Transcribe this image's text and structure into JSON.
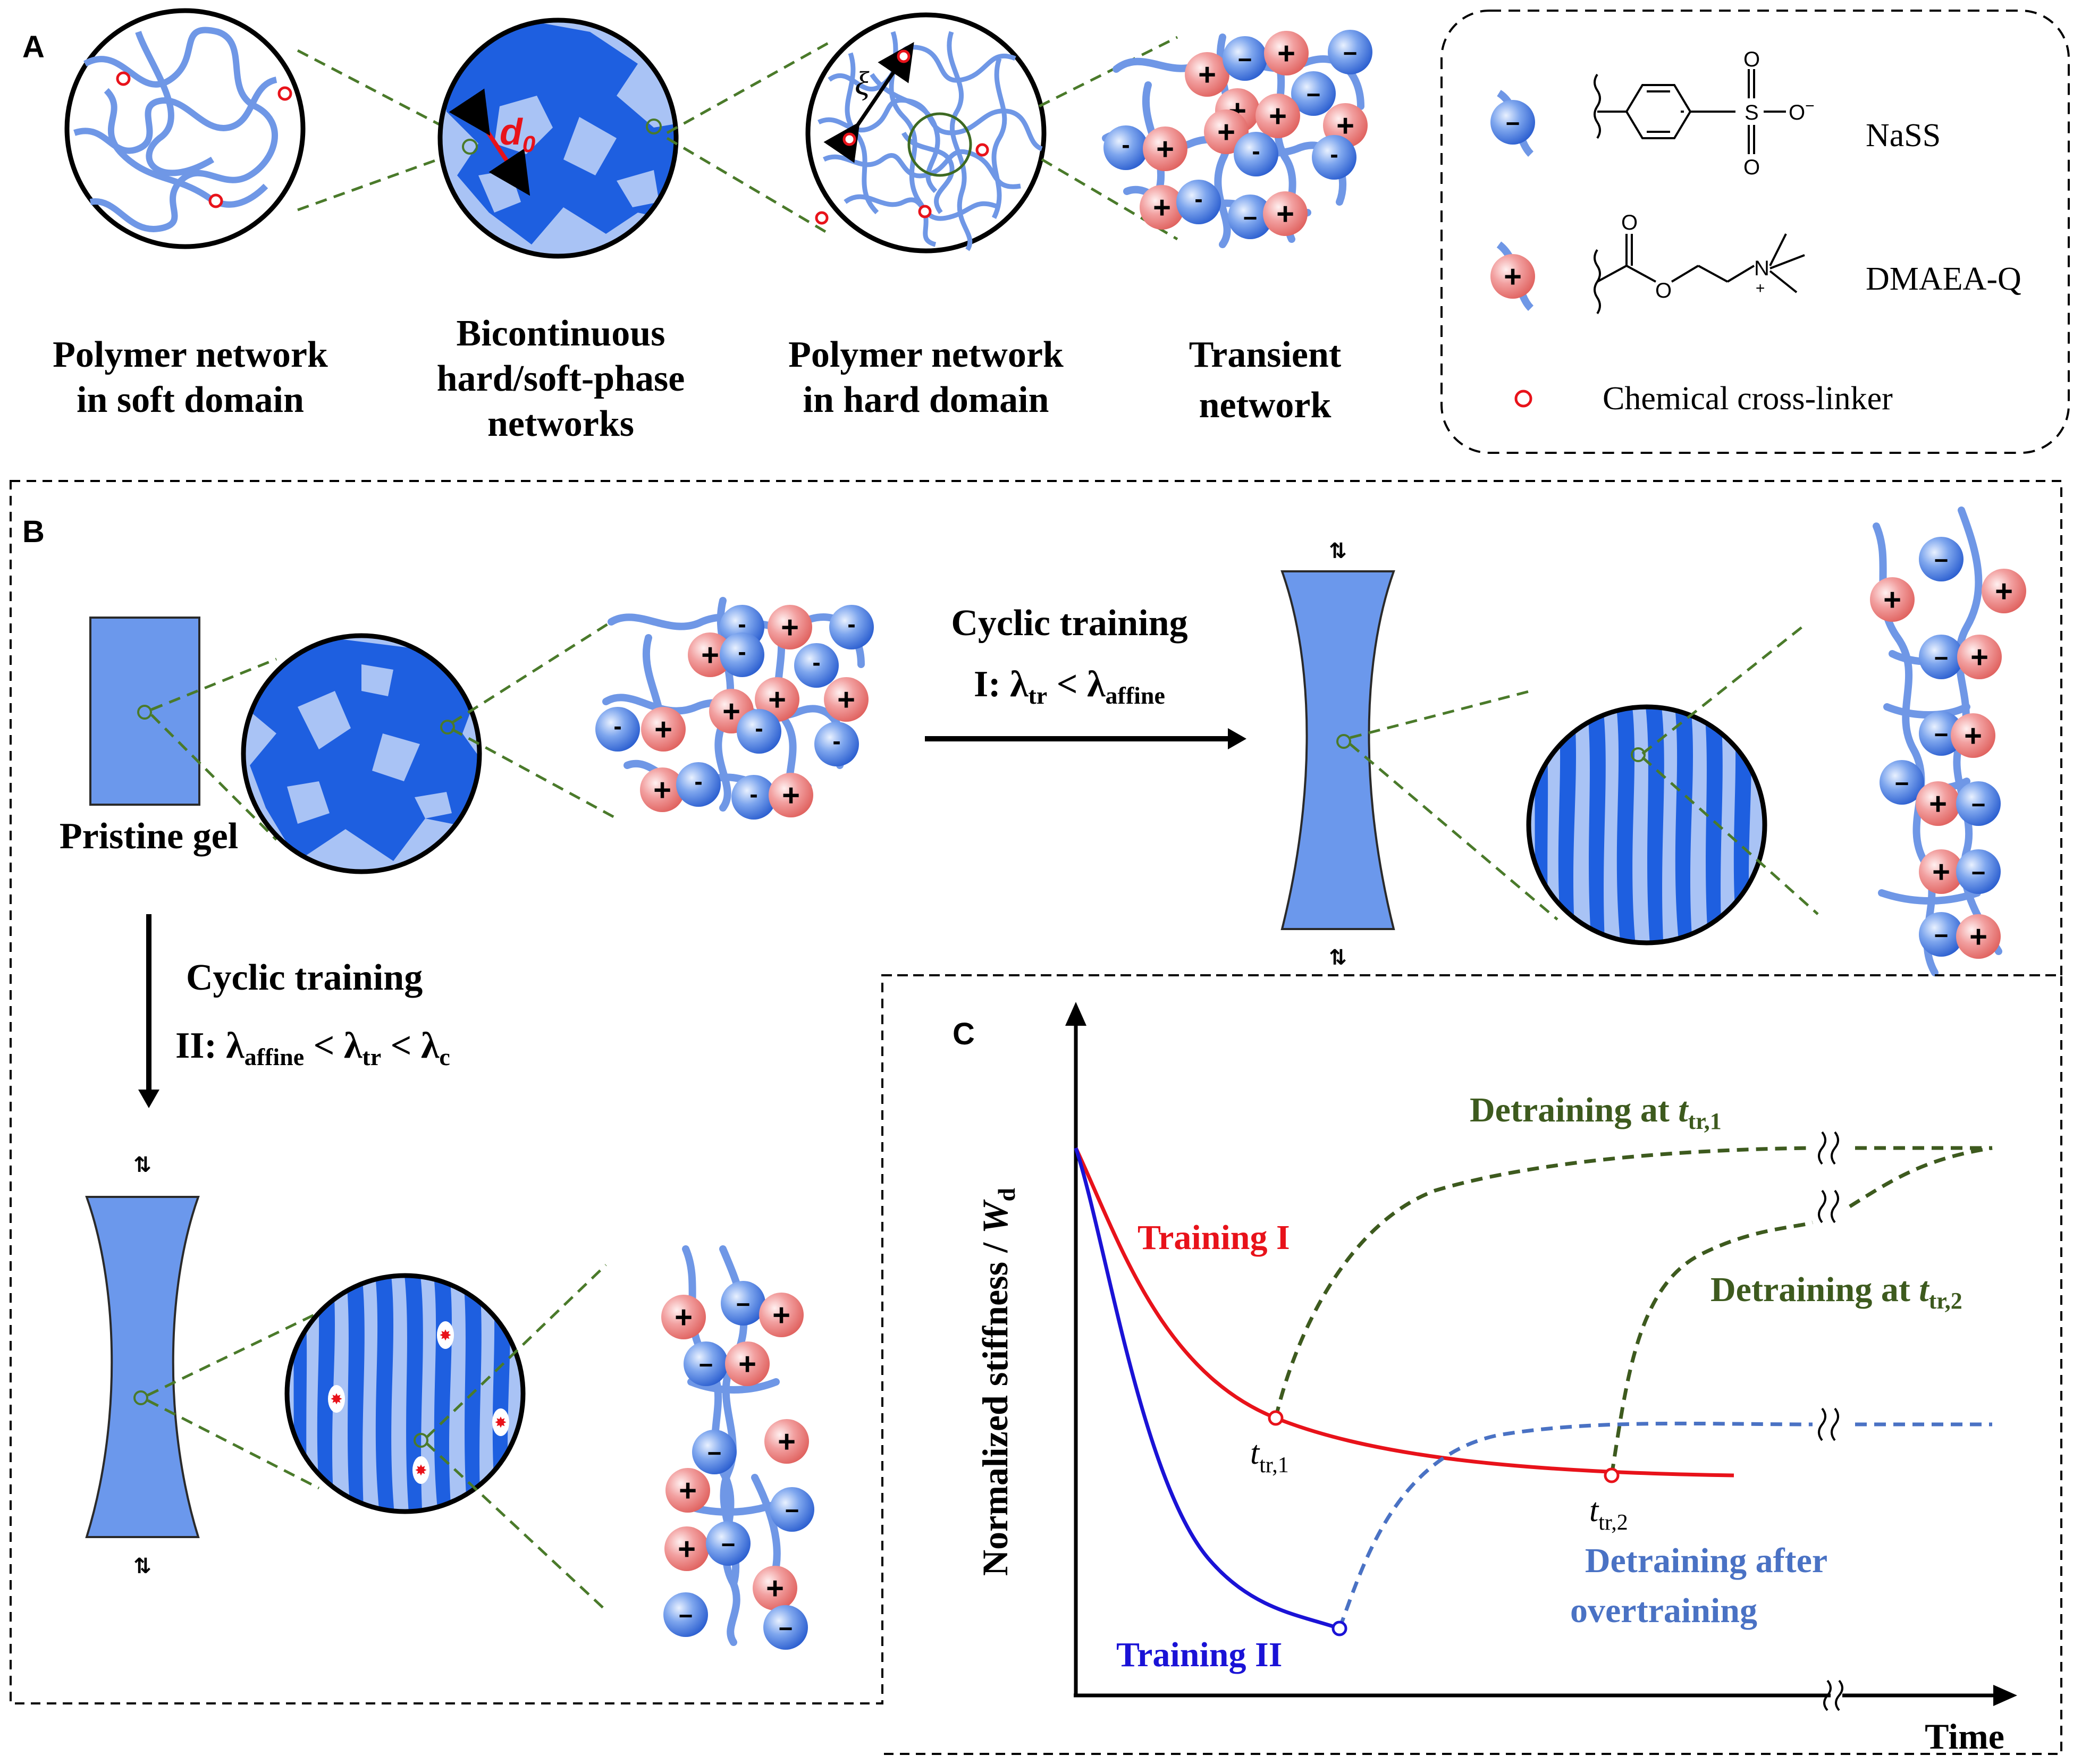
{
  "panel_a": {
    "letter": "A",
    "captions": {
      "soft_1": "Polymer network",
      "soft_2": "in soft domain",
      "bicont_1": "Bicontinuous",
      "bicont_2": "hard/soft-phase",
      "bicont_3": "networks",
      "hard_1": "Polymer network",
      "hard_2": "in hard domain",
      "trans_1": "Transient",
      "trans_2": "network"
    },
    "d0_label": "d",
    "d0_sub": "0",
    "xi_label": "ξ",
    "legend": {
      "nass_label": "NaSS",
      "dmaea_label": "DMAEA-Q",
      "crosslinker_label": "Chemical cross-linker",
      "so3_label": "S",
      "o_label": "O",
      "om_label": "O",
      "om_sup": "−",
      "n_label": "N",
      "n_sup": "+"
    }
  },
  "panel_b": {
    "letter": "B",
    "pristine_label": "Pristine gel",
    "training1_title": "Cyclic training",
    "training1_cond_prefix": "I: λ",
    "training1_cond_sub1": "tr",
    "training1_cond_mid": " < λ",
    "training1_cond_sub2": "affine",
    "training2_title": "Cyclic training",
    "training2_cond_prefix": "II: λ",
    "training2_cond_sub1": "affine",
    "training2_cond_mid1": " < λ",
    "training2_cond_sub2": "tr",
    "training2_cond_mid2": " < λ",
    "training2_cond_sub3": "c"
  },
  "panel_c": {
    "letter": "C",
    "ylabel": "Normalized stiffness / ",
    "ylabel_w": "W",
    "ylabel_sub": "d",
    "xlabel": "Time",
    "training1_label": "Training I",
    "training2_label": "Training II",
    "detrain1_label": "Detraining at ",
    "detrain1_t": "t",
    "detrain1_sub": "tr,1",
    "detrain2_label": "Detraining at ",
    "detrain2_t": "t",
    "detrain2_sub": "tr,2",
    "detrain_over_1": "Detraining after",
    "detrain_over_2": "overtraining",
    "t1_label": "t",
    "t1_sub": "tr,1",
    "t2_label": "t",
    "t2_sub": "tr,2",
    "colors": {
      "training1": "#e8121a",
      "training2": "#1a12d6",
      "detrain_green": "#3d5a1e",
      "detrain_blue": "#4a72c4"
    }
  },
  "ion_symbols": {
    "plus": "+",
    "minus": "−",
    "minus_small": "-"
  }
}
